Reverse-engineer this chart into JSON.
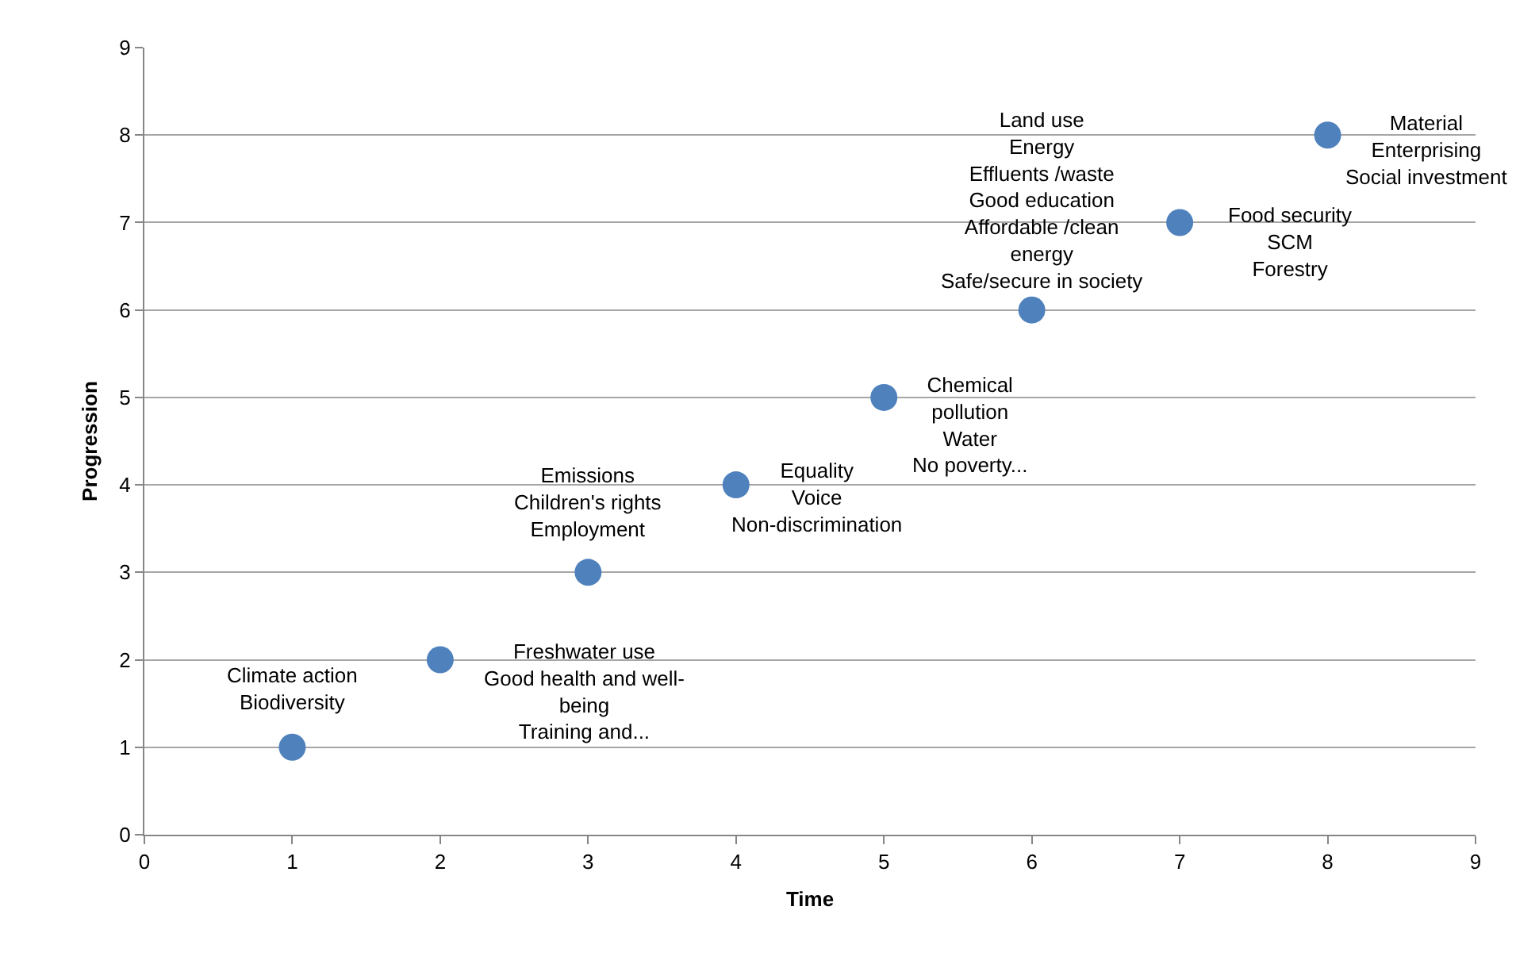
{
  "chart_data": {
    "type": "scatter",
    "xlabel": "Time",
    "ylabel": "Progression",
    "x": [
      1,
      2,
      3,
      4,
      5,
      6,
      7,
      8
    ],
    "series": [
      {
        "color": "#4f81bd",
        "values": [
          1,
          2,
          3,
          4,
          5,
          6,
          7,
          8
        ]
      }
    ],
    "xlim": [
      0,
      9
    ],
    "xticks": [
      0,
      1,
      2,
      3,
      4,
      5,
      6,
      7,
      8,
      9
    ],
    "ylim": [
      0,
      9
    ],
    "yticks": [
      0,
      1,
      2,
      3,
      4,
      5,
      6,
      7,
      8,
      9
    ],
    "grid": "y",
    "marker": "circle",
    "annotations": [
      {
        "text": "Climate action\nBiodiversity",
        "x": 1,
        "y": 1
      },
      {
        "text": "Freshwater use\nGood health and well-\nbeing\nTraining and...",
        "x": 2,
        "y": 2
      },
      {
        "text": "Emissions\nChildren's rights\nEmployment",
        "x": 3,
        "y": 3
      },
      {
        "text": "Equality\nVoice\nNon-discrimination",
        "x": 4,
        "y": 4
      },
      {
        "text": "Chemical\npollution\nWater\nNo poverty...",
        "x": 5,
        "y": 5
      },
      {
        "text": "Land use\nEnergy\nEffluents /waste\nGood education\nAffordable /clean\nenergy\nSafe/secure in society",
        "x": 6,
        "y": 6
      },
      {
        "text": "Food security\nSCM\nForestry",
        "x": 7,
        "y": 7
      },
      {
        "text": "Material\nEnterprising\nSocial investment",
        "x": 8,
        "y": 8
      }
    ]
  }
}
